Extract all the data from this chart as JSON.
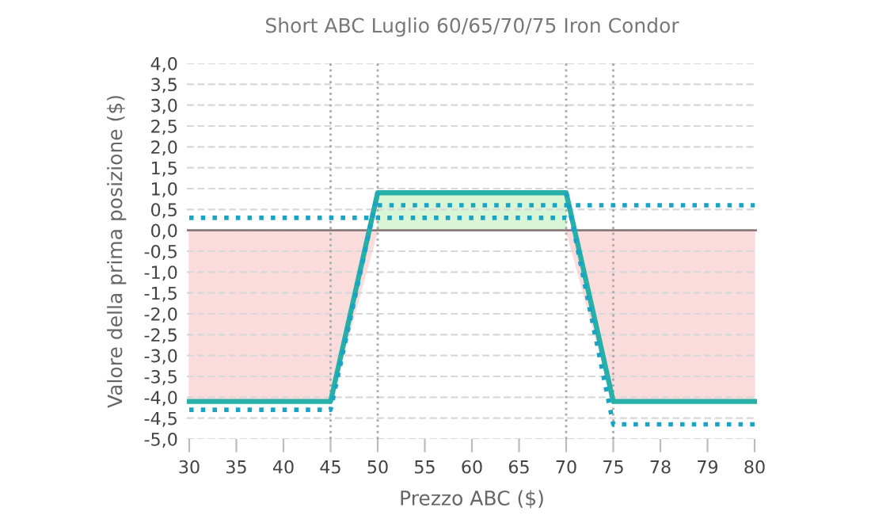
{
  "chart_data": {
    "type": "line",
    "title": "Short ABC Luglio 60/65/70/75 Iron Condor",
    "xlabel": "Prezzo ABC ($)",
    "ylabel": "Valore della prima posizione ($)",
    "categories": [
      "30",
      "35",
      "40",
      "45",
      "50",
      "55",
      "60",
      "65",
      "70",
      "75",
      "78",
      "79",
      "80"
    ],
    "series": [
      {
        "type": "area",
        "color": "#fbdcdc",
        "values": [
          -4.1,
          -4.1,
          -4.1,
          -4.1,
          0,
          null,
          null,
          null,
          0,
          -4.1,
          -4.1,
          -4.1,
          -4.1
        ]
      },
      {
        "type": "area",
        "color": "#d8f5d5",
        "values": [
          null,
          null,
          null,
          null,
          0.9,
          0.9,
          0.9,
          0.9,
          0.9,
          null,
          null,
          null,
          null
        ]
      },
      {
        "color": "#26b0a8",
        "values": [
          -4.1,
          -4.1,
          -4.1,
          -4.1,
          0.9,
          0.9,
          0.9,
          0.9,
          0.9,
          -4.1,
          -4.1,
          -4.1,
          -4.1
        ]
      },
      {
        "color": "#1aa3c4",
        "line_style": "dotted",
        "values": [
          0.3,
          0.3,
          0.3,
          0.3,
          0.3,
          0.3,
          0.3,
          0.3,
          0.3,
          null,
          null,
          null,
          null
        ]
      },
      {
        "color": "#1aa3c4",
        "line_style": "dotted",
        "values": [
          null,
          null,
          null,
          null,
          0.6,
          0.6,
          0.6,
          0.6,
          0.6,
          0.6,
          0.6,
          0.6,
          0.6
        ]
      },
      {
        "color": "#1aa3c4",
        "line_style": "dotted",
        "values": [
          -4.3,
          -4.3,
          -4.3,
          -4.3,
          0.9,
          null,
          null,
          null,
          null,
          null,
          null,
          null,
          null
        ]
      },
      {
        "color": "#1aa3c4",
        "line_style": "dotted",
        "values": [
          null,
          null,
          null,
          null,
          null,
          null,
          null,
          null,
          0.9,
          -4.65,
          -4.65,
          -4.65,
          -4.65
        ]
      }
    ],
    "ref_lines": [
      {
        "axis": "x",
        "value": "45",
        "color": "#aaaaaa",
        "line_style": "dotted"
      },
      {
        "axis": "x",
        "value": "50",
        "color": "#aaaaaa",
        "line_style": "dotted"
      },
      {
        "axis": "x",
        "value": "70",
        "color": "#aaaaaa",
        "line_style": "dotted"
      },
      {
        "axis": "x",
        "value": "75",
        "color": "#aaaaaa",
        "line_style": "dotted"
      },
      {
        "axis": "y",
        "value": 0,
        "color": "#8a7a7a",
        "line_style": "solid"
      }
    ],
    "ylim": [
      -5.0,
      4.0
    ],
    "yticks": [
      {
        "value": -5.0,
        "label": "-5,0"
      },
      {
        "value": -4.5,
        "label": "-4,5"
      },
      {
        "value": -4.0,
        "label": "-4,0"
      },
      {
        "value": -3.5,
        "label": "-3,5"
      },
      {
        "value": -3.0,
        "label": "-3,0"
      },
      {
        "value": -2.5,
        "label": "-2,5"
      },
      {
        "value": -2.0,
        "label": "-2,0"
      },
      {
        "value": -1.5,
        "label": "-1,5"
      },
      {
        "value": -1.0,
        "label": "-1,0"
      },
      {
        "value": -0.5,
        "label": "-0,5"
      },
      {
        "value": 0.0,
        "label": "0,0"
      },
      {
        "value": 0.5,
        "label": "0,5"
      },
      {
        "value": 1.0,
        "label": "1,0"
      },
      {
        "value": 1.5,
        "label": "1,5"
      },
      {
        "value": 2.0,
        "label": "2,0"
      },
      {
        "value": 2.5,
        "label": "2,5"
      },
      {
        "value": 3.0,
        "label": "3,0"
      },
      {
        "value": 3.5,
        "label": "3,5"
      },
      {
        "value": 4.0,
        "label": "4,0"
      }
    ],
    "grid": "y",
    "legend": false,
    "marker": "none"
  }
}
